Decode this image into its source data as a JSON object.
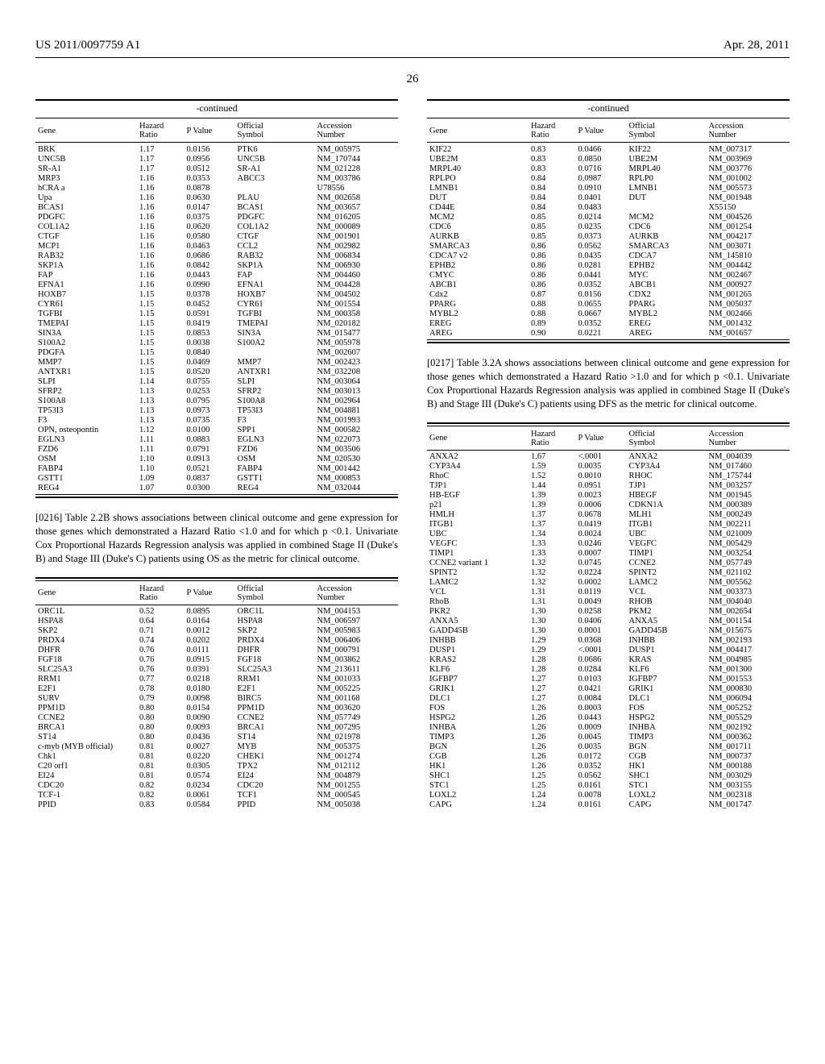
{
  "header": {
    "left": "US 2011/0097759 A1",
    "right": "Apr. 28, 2011"
  },
  "page_number": "26",
  "paragraphs": {
    "p0216": "[0216]   Table 2.2B shows associations between clinical outcome and gene expression for those genes which demonstrated a Hazard Ratio <1.0 and for which p <0.1. Univariate Cox Proportional Hazards Regression analysis was applied in combined Stage II (Duke's B) and Stage III (Duke's C) patients using OS as the metric for clinical outcome.",
    "p0217": "[0217]   Table 3.2A shows associations between clinical outcome and gene expression for those genes which demonstrated a Hazard Ratio >1.0 and for which p <0.1. Univariate Cox Proportional Hazards Regression analysis was applied in combined Stage II (Duke's B) and Stage III (Duke's C) patients using DFS as the metric for clinical outcome."
  },
  "table_style": {
    "font_size": 10.5,
    "columns": [
      "Gene",
      "Hazard Ratio",
      "P Value",
      "Official Symbol",
      "Accession Number"
    ],
    "header_caption": "-continued"
  },
  "table1": {
    "caption": "-continued",
    "columns": [
      "Gene",
      "Hazard Ratio",
      "P Value",
      "Official Symbol",
      "Accession Number"
    ],
    "rows": [
      [
        "BRK",
        "1.17",
        "0.0156",
        "PTK6",
        "NM_005975"
      ],
      [
        "UNC5B",
        "1.17",
        "0.0956",
        "UNC5B",
        "NM_170744"
      ],
      [
        "SR-A1",
        "1.17",
        "0.0512",
        "SR-A1",
        "NM_021228"
      ],
      [
        "MRP3",
        "1.16",
        "0.0353",
        "ABCC3",
        "NM_003786"
      ],
      [
        "hCRA a",
        "1.16",
        "0.0878",
        "",
        "U78556"
      ],
      [
        "Upa",
        "1.16",
        "0.0630",
        "PLAU",
        "NM_002658"
      ],
      [
        "BCAS1",
        "1.16",
        "0.0147",
        "BCAS1",
        "NM_003657"
      ],
      [
        "PDGFC",
        "1.16",
        "0.0375",
        "PDGFC",
        "NM_016205"
      ],
      [
        "COL1A2",
        "1.16",
        "0.0620",
        "COL1A2",
        "NM_000089"
      ],
      [
        "CTGF",
        "1.16",
        "0.0580",
        "CTGF",
        "NM_001901"
      ],
      [
        "MCP1",
        "1.16",
        "0.0463",
        "CCL2",
        "NM_002982"
      ],
      [
        "RAB32",
        "1.16",
        "0.0686",
        "RAB32",
        "NM_006834"
      ],
      [
        "SKP1A",
        "1.16",
        "0.0842",
        "SKP1A",
        "NM_006930"
      ],
      [
        "FAP",
        "1.16",
        "0.0443",
        "FAP",
        "NM_004460"
      ],
      [
        "EFNA1",
        "1.16",
        "0.0990",
        "EFNA1",
        "NM_004428"
      ],
      [
        "HOXB7",
        "1.15",
        "0.0378",
        "HOXB7",
        "NM_004502"
      ],
      [
        "CYR61",
        "1.15",
        "0.0452",
        "CYR61",
        "NM_001554"
      ],
      [
        "TGFBI",
        "1.15",
        "0.0591",
        "TGFBI",
        "NM_000358"
      ],
      [
        "TMEPAI",
        "1.15",
        "0.0419",
        "TMEPAI",
        "NM_020182"
      ],
      [
        "SIN3A",
        "1.15",
        "0.0853",
        "SIN3A",
        "NM_015477"
      ],
      [
        "S100A2",
        "1.15",
        "0.0038",
        "S100A2",
        "NM_005978"
      ],
      [
        "PDGFA",
        "1.15",
        "0.0840",
        "",
        "NM_002607"
      ],
      [
        "MMP7",
        "1.15",
        "0.0469",
        "MMP7",
        "NM_002423"
      ],
      [
        "ANTXR1",
        "1.15",
        "0.0520",
        "ANTXR1",
        "NM_032208"
      ],
      [
        "SLPI",
        "1.14",
        "0.0755",
        "SLPI",
        "NM_003064"
      ],
      [
        "SFRP2",
        "1.13",
        "0.0253",
        "SFRP2",
        "NM_003013"
      ],
      [
        "S100A8",
        "1.13",
        "0.0795",
        "S100A8",
        "NM_002964"
      ],
      [
        "TP53I3",
        "1.13",
        "0.0973",
        "TP53I3",
        "NM_004881"
      ],
      [
        "F3",
        "1.13",
        "0.0735",
        "F3",
        "NM_001993"
      ],
      [
        "OPN, osteopontin",
        "1.12",
        "0.0100",
        "SPP1",
        "NM_000582"
      ],
      [
        "EGLN3",
        "1.11",
        "0.0883",
        "EGLN3",
        "NM_022073"
      ],
      [
        "FZD6",
        "1.11",
        "0.0791",
        "FZD6",
        "NM_003506"
      ],
      [
        "OSM",
        "1.10",
        "0.0913",
        "OSM",
        "NM_020530"
      ],
      [
        "FABP4",
        "1.10",
        "0.0521",
        "FABP4",
        "NM_001442"
      ],
      [
        "GSTT1",
        "1.09",
        "0.0837",
        "GSTT1",
        "NM_000853"
      ],
      [
        "REG4",
        "1.07",
        "0.0300",
        "REG4",
        "NM_032044"
      ]
    ]
  },
  "table2": {
    "columns": [
      "Gene",
      "Hazard Ratio",
      "P Value",
      "Official Symbol",
      "Accession Number"
    ],
    "rows": [
      [
        "ORC1L",
        "0.52",
        "0.0895",
        "ORC1L",
        "NM_004153"
      ],
      [
        "HSPA8",
        "0.64",
        "0.0164",
        "HSPA8",
        "NM_006597"
      ],
      [
        "SKP2",
        "0.71",
        "0.0012",
        "SKP2",
        "NM_005983"
      ],
      [
        "PRDX4",
        "0.74",
        "0.0202",
        "PRDX4",
        "NM_006406"
      ],
      [
        "DHFR",
        "0.76",
        "0.0111",
        "DHFR",
        "NM_000791"
      ],
      [
        "FGF18",
        "0.76",
        "0.0915",
        "FGF18",
        "NM_003862"
      ],
      [
        "SLC25A3",
        "0.76",
        "0.0391",
        "SLC25A3",
        "NM_213611"
      ],
      [
        "RRM1",
        "0.77",
        "0.0218",
        "RRM1",
        "NM_001033"
      ],
      [
        "E2F1",
        "0.78",
        "0.0180",
        "E2F1",
        "NM_005225"
      ],
      [
        "SURV",
        "0.79",
        "0.0098",
        "BIRC5",
        "NM_001168"
      ],
      [
        "PPM1D",
        "0.80",
        "0.0154",
        "PPM1D",
        "NM_003620"
      ],
      [
        "CCNE2",
        "0.80",
        "0.0090",
        "CCNE2",
        "NM_057749"
      ],
      [
        "BRCA1",
        "0.80",
        "0.0093",
        "BRCA1",
        "NM_007295"
      ],
      [
        "ST14",
        "0.80",
        "0.0436",
        "ST14",
        "NM_021978"
      ],
      [
        "c-myb (MYB official)",
        "0.81",
        "0.0027",
        "MYB",
        "NM_005375"
      ],
      [
        "Chk1",
        "0.81",
        "0.0220",
        "CHEK1",
        "NM_001274"
      ],
      [
        "C20 orf1",
        "0.81",
        "0.0305",
        "TPX2",
        "NM_012112"
      ],
      [
        "EI24",
        "0.81",
        "0.0574",
        "EI24",
        "NM_004879"
      ],
      [
        "CDC20",
        "0.82",
        "0.0234",
        "CDC20",
        "NM_001255"
      ],
      [
        "TCF-1",
        "0.82",
        "0.0061",
        "TCF1",
        "NM_000545"
      ],
      [
        "PPID",
        "0.83",
        "0.0584",
        "PPID",
        "NM_005038"
      ]
    ]
  },
  "table3": {
    "caption": "-continued",
    "columns": [
      "Gene",
      "Hazard Ratio",
      "P Value",
      "Official Symbol",
      "Accession Number"
    ],
    "rows": [
      [
        "KIF22",
        "0.83",
        "0.0466",
        "KIF22",
        "NM_007317"
      ],
      [
        "UBE2M",
        "0.83",
        "0.0850",
        "UBE2M",
        "NM_003969"
      ],
      [
        "MRPL40",
        "0.83",
        "0.0716",
        "MRPL40",
        "NM_003776"
      ],
      [
        "RPLPO",
        "0.84",
        "0.0987",
        "RPLP0",
        "NM_001002"
      ],
      [
        "LMNB1",
        "0.84",
        "0.0910",
        "LMNB1",
        "NM_005573"
      ],
      [
        "DUT",
        "0.84",
        "0.0401",
        "DUT",
        "NM_001948"
      ],
      [
        "CD44E",
        "0.84",
        "0.0483",
        "",
        "X55150"
      ],
      [
        "MCM2",
        "0.85",
        "0.0214",
        "MCM2",
        "NM_004526"
      ],
      [
        "CDC6",
        "0.85",
        "0.0235",
        "CDC6",
        "NM_001254"
      ],
      [
        "AURKB",
        "0.85",
        "0.0373",
        "AURKB",
        "NM_004217"
      ],
      [
        "SMARCA3",
        "0.86",
        "0.0562",
        "SMARCA3",
        "NM_003071"
      ],
      [
        "CDCA7 v2",
        "0.86",
        "0.0435",
        "CDCA7",
        "NM_145810"
      ],
      [
        "EPHB2",
        "0.86",
        "0.0281",
        "EPHB2",
        "NM_004442"
      ],
      [
        "CMYC",
        "0.86",
        "0.0441",
        "MYC",
        "NM_002467"
      ],
      [
        "ABCB1",
        "0.86",
        "0.0352",
        "ABCB1",
        "NM_000927"
      ],
      [
        "Cdx2",
        "0.87",
        "0.0156",
        "CDX2",
        "NM_001265"
      ],
      [
        "PPARG",
        "0.88",
        "0.0655",
        "PPARG",
        "NM_005037"
      ],
      [
        "MYBL2",
        "0.88",
        "0.0667",
        "MYBL2",
        "NM_002466"
      ],
      [
        "EREG",
        "0.89",
        "0.0352",
        "EREG",
        "NM_001432"
      ],
      [
        "AREG",
        "0.90",
        "0.0221",
        "AREG",
        "NM_001657"
      ]
    ]
  },
  "table4": {
    "columns": [
      "Gene",
      "Hazard Ratio",
      "P Value",
      "Official Symbol",
      "Accession Number"
    ],
    "rows": [
      [
        "ANXA2",
        "1.67",
        "<.0001",
        "ANXA2",
        "NM_004039"
      ],
      [
        "CYP3A4",
        "1.59",
        "0.0035",
        "CYP3A4",
        "NM_017460"
      ],
      [
        "RhoC",
        "1.52",
        "0.0010",
        "RHOC",
        "NM_175744"
      ],
      [
        "TJP1",
        "1.44",
        "0.0951",
        "TJP1",
        "NM_003257"
      ],
      [
        "HB-EGF",
        "1.39",
        "0.0023",
        "HBEGF",
        "NM_001945"
      ],
      [
        "p21",
        "1.39",
        "0.0006",
        "CDKN1A",
        "NM_000389"
      ],
      [
        "HMLH",
        "1.37",
        "0.0678",
        "MLH1",
        "NM_000249"
      ],
      [
        "ITGB1",
        "1.37",
        "0.0419",
        "ITGB1",
        "NM_002211"
      ],
      [
        "UBC",
        "1.34",
        "0.0024",
        "UBC",
        "NM_021009"
      ],
      [
        "VEGFC",
        "1.33",
        "0.0246",
        "VEGFC",
        "NM_005429"
      ],
      [
        "TIMP1",
        "1.33",
        "0.0007",
        "TIMP1",
        "NM_003254"
      ],
      [
        "CCNE2 variant 1",
        "1.32",
        "0.0745",
        "CCNE2",
        "NM_057749"
      ],
      [
        "SPINT2",
        "1.32",
        "0.0224",
        "SPINT2",
        "NM_021102"
      ],
      [
        "LAMC2",
        "1.32",
        "0.0002",
        "LAMC2",
        "NM_005562"
      ],
      [
        "VCL",
        "1.31",
        "0.0119",
        "VCL",
        "NM_003373"
      ],
      [
        "RhoB",
        "1.31",
        "0.0049",
        "RHOB",
        "NM_004040"
      ],
      [
        "PKR2",
        "1.30",
        "0.0258",
        "PKM2",
        "NM_002654"
      ],
      [
        "ANXA5",
        "1.30",
        "0.0406",
        "ANXA5",
        "NM_001154"
      ],
      [
        "GADD45B",
        "1.30",
        "0.0001",
        "GADD45B",
        "NM_015675"
      ],
      [
        "INHBB",
        "1.29",
        "0.0368",
        "INHBB",
        "NM_002193"
      ],
      [
        "DUSP1",
        "1.29",
        "<.0001",
        "DUSP1",
        "NM_004417"
      ],
      [
        "KRAS2",
        "1.28",
        "0.0686",
        "KRAS",
        "NM_004985"
      ],
      [
        "KLF6",
        "1.28",
        "0.0284",
        "KLF6",
        "NM_001300"
      ],
      [
        "IGFBP7",
        "1.27",
        "0.0103",
        "IGFBP7",
        "NM_001553"
      ],
      [
        "GRIK1",
        "1.27",
        "0.0421",
        "GRIK1",
        "NM_000830"
      ],
      [
        "DLC1",
        "1.27",
        "0.0084",
        "DLC1",
        "NM_006094"
      ],
      [
        "FOS",
        "1.26",
        "0.0003",
        "FOS",
        "NM_005252"
      ],
      [
        "HSPG2",
        "1.26",
        "0.0443",
        "HSPG2",
        "NM_005529"
      ],
      [
        "INHBA",
        "1.26",
        "0.0009",
        "INHBA",
        "NM_002192"
      ],
      [
        "TIMP3",
        "1.26",
        "0.0045",
        "TIMP3",
        "NM_000362"
      ],
      [
        "BGN",
        "1.26",
        "0.0035",
        "BGN",
        "NM_001711"
      ],
      [
        "CGB",
        "1.26",
        "0.0172",
        "CGB",
        "NM_000737"
      ],
      [
        "HK1",
        "1.26",
        "0.0352",
        "HK1",
        "NM_000188"
      ],
      [
        "SHC1",
        "1.25",
        "0.0562",
        "SHC1",
        "NM_003029"
      ],
      [
        "STC1",
        "1.25",
        "0.0161",
        "STC1",
        "NM_003155"
      ],
      [
        "LOXL2",
        "1.24",
        "0.0078",
        "LOXL2",
        "NM_002318"
      ],
      [
        "CAPG",
        "1.24",
        "0.0161",
        "CAPG",
        "NM_001747"
      ]
    ]
  }
}
